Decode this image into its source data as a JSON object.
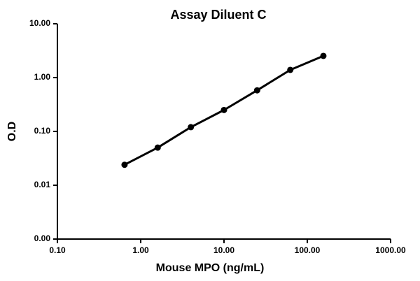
{
  "chart_data": {
    "type": "line",
    "title": "Assay Diluent C",
    "x_label": "Mouse MPO (ng/mL)",
    "y_label": "O.D",
    "x_log": true,
    "y_log": true,
    "xlim": [
      0.1,
      1000
    ],
    "ylim": [
      0.001,
      10
    ],
    "xticks": [
      {
        "value": 0.1,
        "label": "0.10"
      },
      {
        "value": 1,
        "label": "1.00"
      },
      {
        "value": 10,
        "label": "10.00"
      },
      {
        "value": 100,
        "label": "100.00"
      },
      {
        "value": 1000,
        "label": "1000.00"
      }
    ],
    "yticks": [
      {
        "value": 0.001,
        "label": "0.00"
      },
      {
        "value": 0.01,
        "label": "0.01"
      },
      {
        "value": 0.1,
        "label": "0.10"
      },
      {
        "value": 1,
        "label": "1.00"
      },
      {
        "value": 10,
        "label": "10.00"
      }
    ],
    "x": [
      0.64,
      1.6,
      4,
      10,
      25,
      62.5,
      156
    ],
    "series": [
      {
        "color": "#000000",
        "values": [
          0.024,
          0.05,
          0.12,
          0.25,
          0.58,
          1.39,
          2.53
        ]
      }
    ]
  }
}
